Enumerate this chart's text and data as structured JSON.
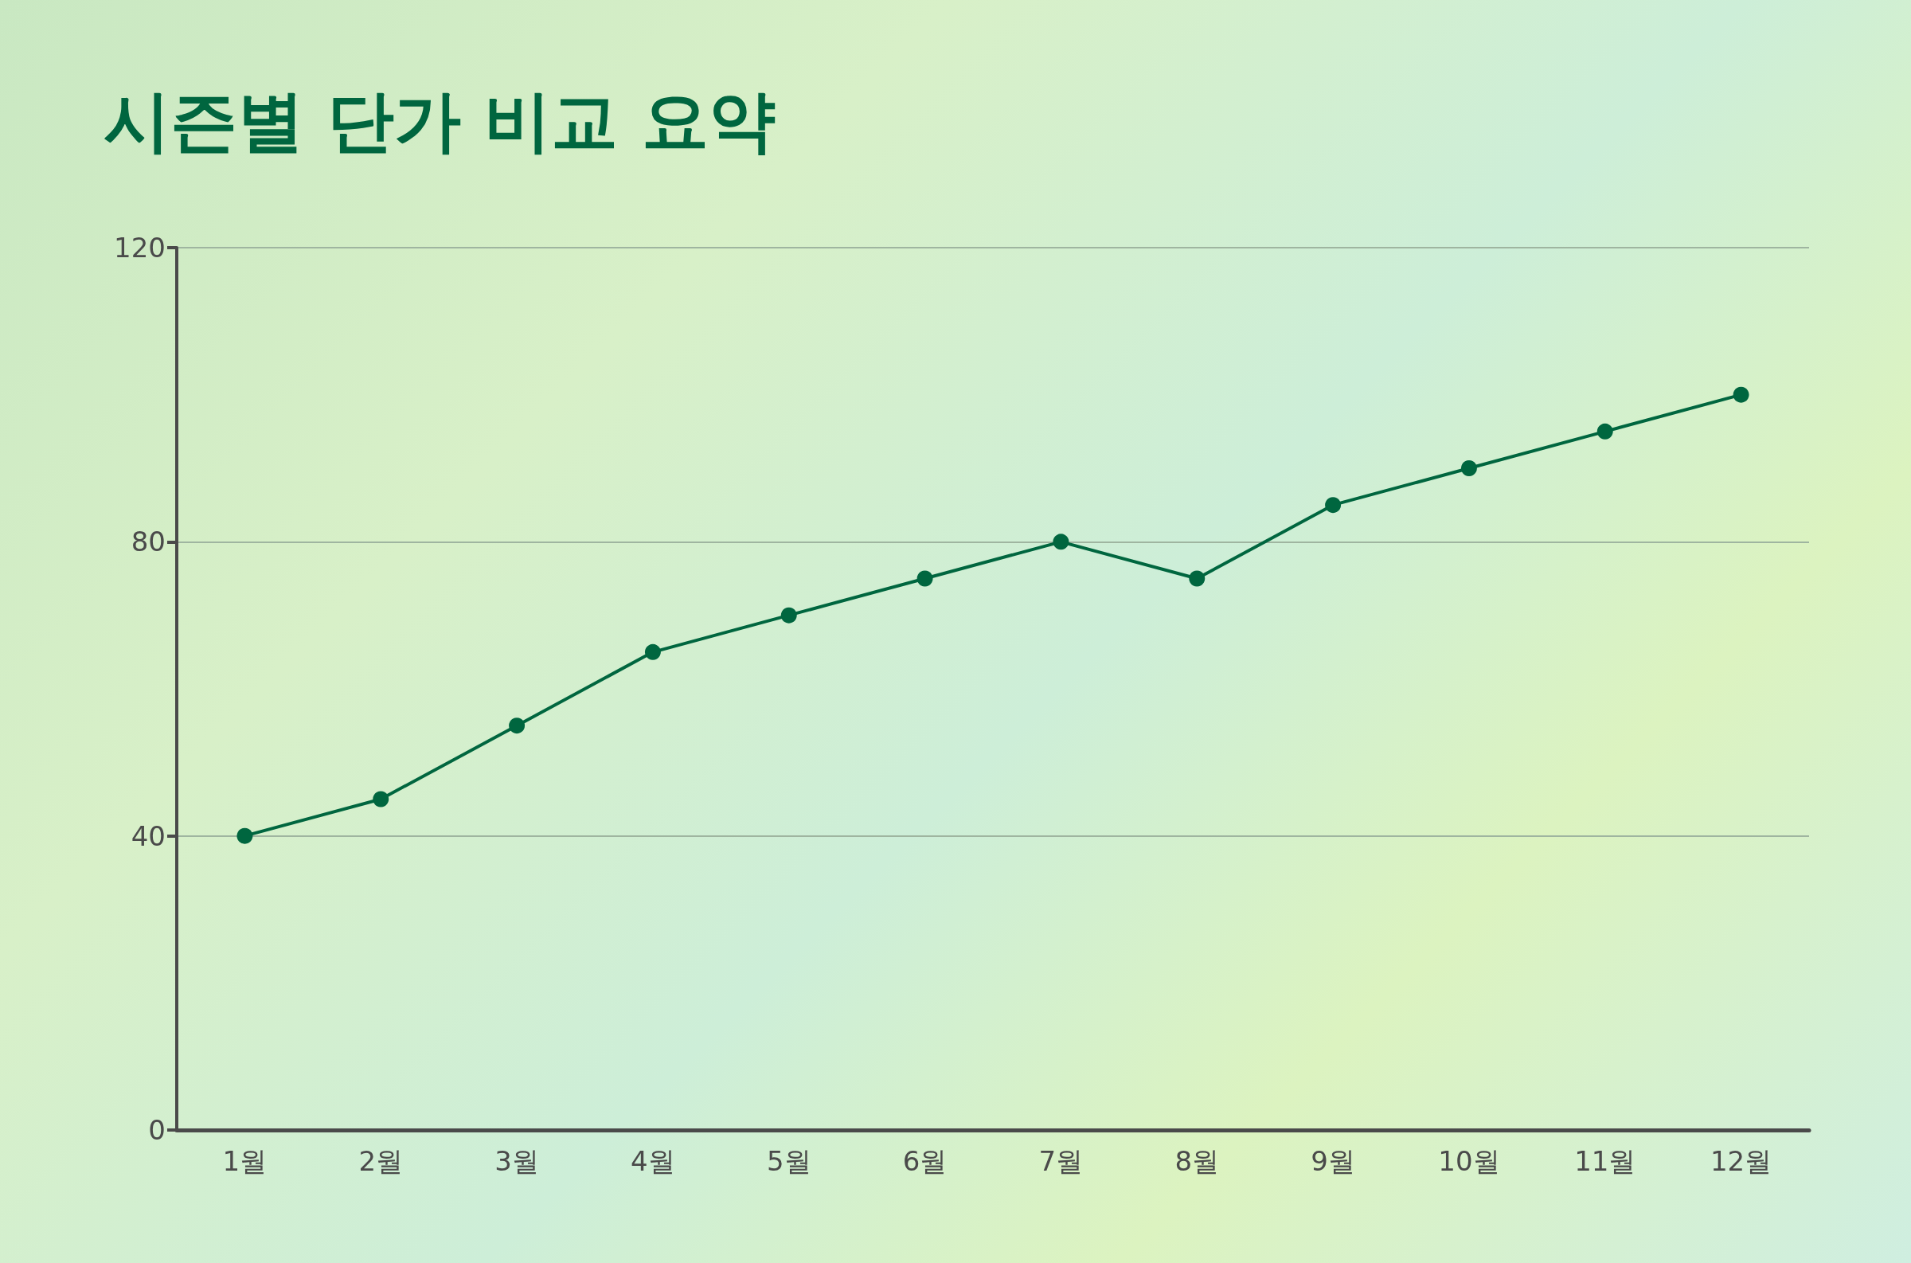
{
  "chart_data": {
    "type": "line",
    "title": "시즌별 단가 비교 요약",
    "categories": [
      "1월",
      "2월",
      "3월",
      "4월",
      "5월",
      "6월",
      "7월",
      "8월",
      "9월",
      "10월",
      "11월",
      "12월"
    ],
    "series": [
      {
        "color": "#00663f",
        "values": [
          40,
          45,
          55,
          65,
          70,
          75,
          80,
          75,
          85,
          90,
          95,
          100
        ]
      }
    ],
    "ylim": [
      0,
      120
    ],
    "yticks": [
      0,
      40,
      80,
      120
    ],
    "grid": "y",
    "marker": "circle",
    "line_style": "solid"
  }
}
